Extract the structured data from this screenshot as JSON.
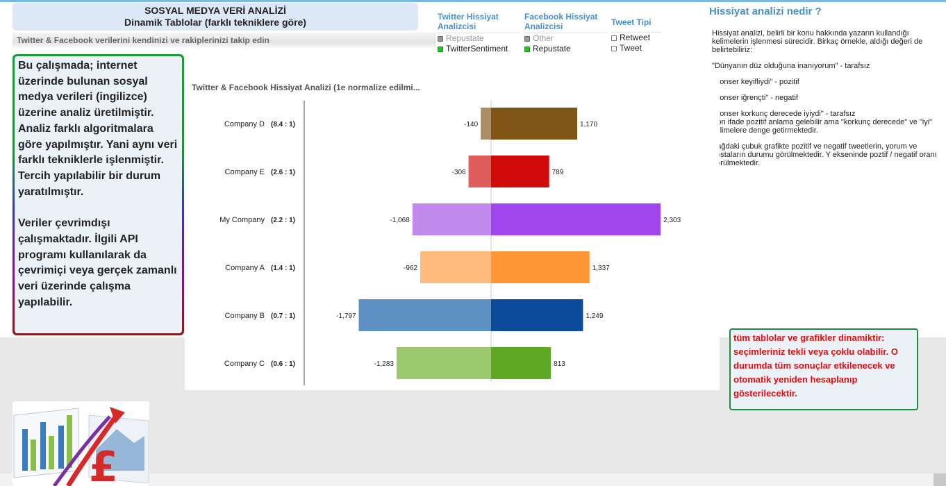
{
  "header": {
    "title_line1": "SOSYAL MEDYA VERİ ANALİZİ",
    "title_line2": "Dinamik Tablolar (farklı tekniklere göre)",
    "subtitle": "Twitter & Facebook verilerini kendinizi ve rakiplerinizi  takip edin"
  },
  "listboxes": [
    {
      "title": [
        "Twitter Hissiyat",
        "Analizcisi"
      ],
      "items": [
        {
          "label": "Repustate",
          "state": "excluded"
        },
        {
          "label": "TwitterSentiment",
          "state": "selected"
        }
      ]
    },
    {
      "title": [
        "Facebook Hissiyat",
        "Analizcisi"
      ],
      "items": [
        {
          "label": "Other",
          "state": "excluded"
        },
        {
          "label": "Repustate",
          "state": "selected"
        }
      ]
    },
    {
      "title": [
        "Tweet Tipi"
      ],
      "items": [
        {
          "label": "Retweet",
          "state": "unchecked"
        },
        {
          "label": "Tweet",
          "state": "unchecked"
        }
      ]
    }
  ],
  "info": {
    "title": "Hissiyat analizi nedir ?",
    "paragraphs": [
      "Hissiyat analizi, belirli bir konu hakkında yazarın kullandığı kelimelerin işlenmesi sürecidir. Birkaç örnekle, aldığı değeri de belirtebiliriz:",
      "\"Dünyanın düz olduğuna inanıyorum\" - tarafsız",
      "\"Konser keyifliydi\" - pozitif",
      "\"Konser iğrençti\" - negatif",
      "\"Konser korkunç derecede iyiydi\" - tarafsız\nSon ifade pozitif anlama gelebilir ama \"korkunç derecede\" ve \"iyi\"  kelimelere denge getirmektedir.",
      "Sağdaki çubuk grafikte pozitif ve negatif tweetlerin, yorum ve postaların durumu görülmektedir.  Y ekseninde poztif / negatif oranı görülmektedir."
    ]
  },
  "left_note": {
    "para1": "Bu çalışmada; internet üzerinde bulunan sosyal medya verileri (ingilizce) üzerine analiz üretilmiştir. Analiz farklı algoritmalara göre yapılmıştır. Yani aynı veri farklı tekniklerle işlenmiştir. Tercih yapılabilir bir durum yaratılmıştır.",
    "para2": "Veriler çevrimdışı çalışmaktadır. İlgili API programı kullanılarak da çevrimiçi veya gerçek zamanlı veri üzerinde çalışma yapılabilir."
  },
  "red_note": "tüm tablolar ve grafikler dinamiktir: seçimleriniz tekli veya çoklu olabilir. O durumda tüm sonuçlar etkilenecek ve otomatik yeniden hesaplanıp gösterilecektir.",
  "chart_data": {
    "type": "bar",
    "orientation": "horizontal-diverging",
    "title": "Twitter & Facebook Hissiyat Analizi (1e normalize edilmi...",
    "categories": [
      "Company D",
      "Company E",
      "My Company",
      "Company A",
      "Company B",
      "Company C"
    ],
    "ratios": [
      "(8.4 : 1)",
      "(2.6 : 1)",
      "(2.2 : 1)",
      "(1.4 : 1)",
      "(0.7 : 1)",
      "(0.6 : 1)"
    ],
    "series": [
      {
        "name": "",
        "values": [
          -140,
          -306,
          -1068,
          -962,
          -1797,
          -1283
        ]
      },
      {
        "name": "",
        "values": [
          1170,
          789,
          2303,
          1337,
          1249,
          813
        ]
      }
    ],
    "value_labels": {
      "negative": [
        "-140",
        "-306",
        "-1,068",
        "-962",
        "-1,797",
        "-1,283"
      ],
      "positive": [
        "1,170",
        "789",
        "2,303",
        "1,337",
        "1,249",
        "813"
      ]
    },
    "xlim": [
      -2540,
      2540
    ],
    "colors": {
      "positive": [
        "#7f5416",
        "#d10a0a",
        "#a146ec",
        "#fe9633",
        "#0c4b9a",
        "#5ea824"
      ],
      "negative": [
        "#ab8e66",
        "#de5e5e",
        "#c38aee",
        "#fcbb7c",
        "#5e90c3",
        "#9cc96e"
      ]
    },
    "grid": false
  }
}
